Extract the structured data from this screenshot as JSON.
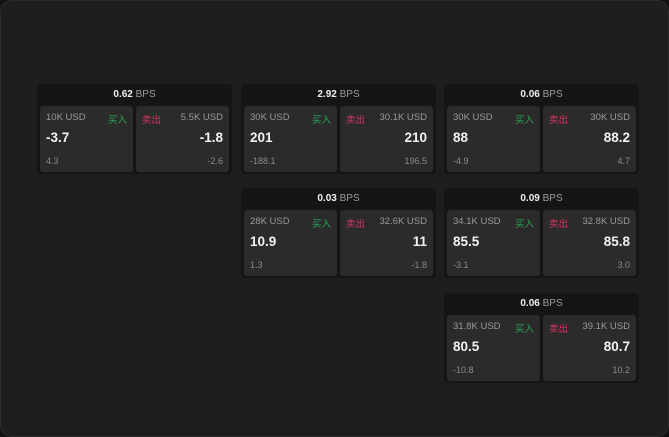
{
  "colors": {
    "buy": "#2ea35a",
    "sell": "#d6365f"
  },
  "labels": {
    "buy": "买入",
    "sell": "卖出",
    "unit": "BPS"
  },
  "panels": [
    {
      "spread": "0.62",
      "bid_size": "10K USD",
      "bid": "-3.7",
      "bid_change": "4.3",
      "ask_size": "5.5K USD",
      "ask": "-1.8",
      "ask_change": "-2.6"
    },
    {
      "spread": "2.92",
      "bid_size": "30K USD",
      "bid": "201",
      "bid_change": "-188.1",
      "ask_size": "30.1K USD",
      "ask": "210",
      "ask_change": "196.5"
    },
    {
      "spread": "0.06",
      "bid_size": "30K USD",
      "bid": "88",
      "bid_change": "-4.9",
      "ask_size": "30K USD",
      "ask": "88.2",
      "ask_change": "4.7"
    },
    {
      "spread": "0.03",
      "bid_size": "28K USD",
      "bid": "10.9",
      "bid_change": "1.3",
      "ask_size": "32.6K USD",
      "ask": "11",
      "ask_change": "-1.8"
    },
    {
      "spread": "0.09",
      "bid_size": "34.1K USD",
      "bid": "85.5",
      "bid_change": "-3.1",
      "ask_size": "32.8K USD",
      "ask": "85.8",
      "ask_change": "3.0"
    },
    {
      "spread": "0.06",
      "bid_size": "31.8K USD",
      "bid": "80.5",
      "bid_change": "-10.8",
      "ask_size": "39.1K USD",
      "ask": "80.7",
      "ask_change": "10.2"
    }
  ]
}
